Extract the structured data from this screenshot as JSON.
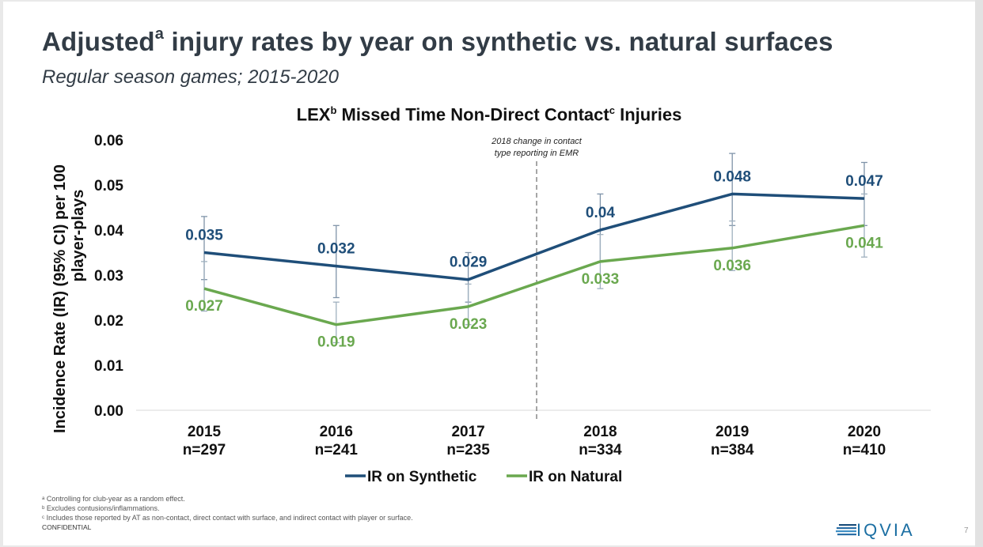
{
  "slide": {
    "title_main": "Adjusted",
    "title_sup": "a",
    "title_rest": " injury rates by year on synthetic vs. natural surfaces",
    "subtitle": "Regular season games; 2015-2020",
    "footnotes": [
      "ᵃ Controlling for club-year as a random effect.",
      "ᵇ Excludes contusions/inflammations.",
      "ᶜ Includes those reported by AT as non-contact, direct contact with surface, and indirect contact with player or surface."
    ],
    "confidential": "CONFIDENTIAL",
    "logo_text": "IQVIA",
    "logo_icon": "iqvia-stripes-icon",
    "page_number": "7"
  },
  "chart_data": {
    "type": "line",
    "title_parts": {
      "a": "LEX",
      "a_sup": "b",
      "b": " Missed Time Non-Direct Contact",
      "b_sup": "c",
      "c": " Injuries"
    },
    "title": "LEXb Missed Time Non-Direct Contactc Injuries",
    "ylabel_line1": "Incidence Rate (IR) (95% CI) per 100",
    "ylabel_line2": "player-plays",
    "xlabel": "",
    "ylim": [
      0,
      0.06
    ],
    "yticks": [
      "0.00",
      "0.01",
      "0.02",
      "0.03",
      "0.04",
      "0.05",
      "0.06"
    ],
    "grid": false,
    "categories": [
      "2015",
      "2016",
      "2017",
      "2018",
      "2019",
      "2020"
    ],
    "category_n": [
      "n=297",
      "n=241",
      "n=235",
      "n=334",
      "n=384",
      "n=410"
    ],
    "series": [
      {
        "name": "IR on Synthetic",
        "color": "#1f4e79",
        "values": [
          0.035,
          0.032,
          0.029,
          0.04,
          0.048,
          0.047
        ],
        "labels": [
          "0.035",
          "0.032",
          "0.029",
          "0.04",
          "0.048",
          "0.047"
        ],
        "ci_low": [
          0.029,
          0.025,
          0.024,
          0.033,
          0.041,
          0.041
        ],
        "ci_high": [
          0.043,
          0.041,
          0.035,
          0.048,
          0.057,
          0.055
        ]
      },
      {
        "name": "IR on Natural",
        "color": "#6aa84f",
        "values": [
          0.027,
          0.019,
          0.023,
          0.033,
          0.036,
          0.041
        ],
        "labels": [
          "0.027",
          "0.019",
          "0.023",
          "0.033",
          "0.036",
          "0.041"
        ],
        "ci_low": [
          0.022,
          0.015,
          0.019,
          0.027,
          0.031,
          0.034
        ],
        "ci_high": [
          0.033,
          0.024,
          0.028,
          0.039,
          0.042,
          0.048
        ]
      }
    ],
    "annotation": {
      "line1": "2018 change in contact",
      "line2": "type reporting in EMR",
      "between": [
        "2017",
        "2018"
      ],
      "style": "dashed-vertical-line"
    },
    "legend": "bottom-center"
  }
}
